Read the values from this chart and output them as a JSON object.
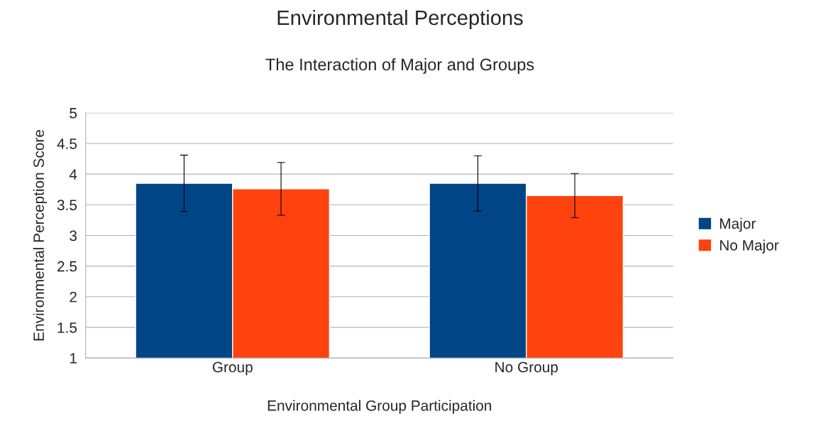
{
  "chart_data": {
    "type": "bar",
    "title": "Environmental Perceptions",
    "subtitle": "The Interaction of Major and Groups",
    "xlabel": "Environmental Group Participation",
    "ylabel": "Environmental Perception Score",
    "categories": [
      "Group",
      "No Group"
    ],
    "series": [
      {
        "name": "Major",
        "color": "#004586",
        "values": [
          3.85,
          3.85
        ],
        "errors": [
          0.46,
          0.45
        ]
      },
      {
        "name": "No Major",
        "color": "#ff420e",
        "values": [
          3.76,
          3.65
        ],
        "errors": [
          0.43,
          0.36
        ]
      }
    ],
    "ylim": [
      1,
      5
    ],
    "yticks": [
      1,
      1.5,
      2,
      2.5,
      3,
      3.5,
      4,
      4.5,
      5
    ],
    "grid": "y",
    "legend": "right"
  }
}
